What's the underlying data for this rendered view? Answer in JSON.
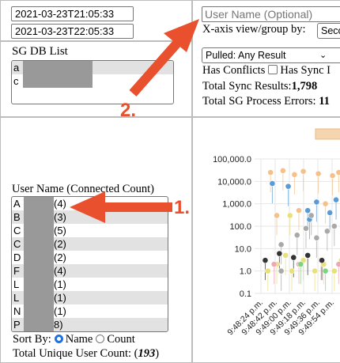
{
  "filters": {
    "start_datetime": "2021-03-23T21:05:33",
    "end_datetime": "2021-03-23T22:05:33"
  },
  "sg_db_list": {
    "title": "SG DB List",
    "items": [
      "a",
      "c"
    ]
  },
  "controls": {
    "username_placeholder": "User Name (Optional)",
    "xaxis_label": "X-axis view/group by:",
    "xaxis_value": "Seco",
    "pulled_value": "Pulled: Any Result",
    "has_conflicts_label": "Has Conflicts",
    "has_sync_label": "Has Sync I",
    "total_sync_label": "Total Sync Results:",
    "total_sync_value": "1,798",
    "total_errors_label": "Total SG Process Errors: ",
    "total_errors_value": "11"
  },
  "user_list": {
    "title": "User Name (Connected Count)",
    "items": [
      {
        "name": "A",
        "count": "(4)"
      },
      {
        "name": "B",
        "count": "(3)"
      },
      {
        "name": "C",
        "count": "(5)"
      },
      {
        "name": "C",
        "count": "(2)"
      },
      {
        "name": "D",
        "count": "(2)"
      },
      {
        "name": "F",
        "count": "(4)"
      },
      {
        "name": "L",
        "count": "(1)"
      },
      {
        "name": "L",
        "count": "(1)"
      },
      {
        "name": "N",
        "count": "(1)"
      },
      {
        "name": "P",
        "count": "8)"
      }
    ],
    "sort_by_label": "Sort By:",
    "sort_name_label": "Name",
    "sort_count_label": "Count",
    "total_unique_label": "Total Unique User Count: (",
    "total_unique_value": "193",
    "total_unique_suffix": ")"
  },
  "annotations": {
    "arrow1_label": "1.",
    "arrow2_label": "2.",
    "arrow_color": "#e8502e"
  },
  "chart_data": {
    "type": "scatter",
    "y_scale": "log",
    "ylim": [
      0.1,
      100000
    ],
    "y_ticks": [
      "100,000.0",
      "10,000.0",
      "1,000.0",
      "100.0",
      "10.0",
      "1.0",
      "0.1"
    ],
    "x_ticks": [
      "9:48:24 p.m.",
      "9:48:42 p.m.",
      "9:49:00 p.m.",
      "9:49:18 p.m.",
      "9:49:36 p.m.",
      "9:49:54 p.m."
    ],
    "grid": true,
    "series": [
      {
        "color": "#f5c18a",
        "points": [
          [
            0.18,
            25000
          ],
          [
            0.32,
            30000
          ],
          [
            0.45,
            20000
          ],
          [
            0.55,
            28000
          ],
          [
            0.72,
            22000
          ],
          [
            0.88,
            18000
          ],
          [
            0.95,
            25000
          ],
          [
            0.25,
            300
          ],
          [
            0.5,
            500
          ],
          [
            0.8,
            1000
          ]
        ]
      },
      {
        "color": "#5b9bd5",
        "points": [
          [
            0.2,
            8000
          ],
          [
            0.38,
            6000
          ],
          [
            0.6,
            500
          ],
          [
            0.7,
            1200
          ],
          [
            0.85,
            400
          ],
          [
            0.62,
            200
          ],
          [
            0.92,
            1500
          ]
        ]
      },
      {
        "color": "#e8e07a",
        "points": [
          [
            0.15,
            1
          ],
          [
            0.25,
            2
          ],
          [
            0.42,
            1
          ],
          [
            0.55,
            3
          ],
          [
            0.68,
            1
          ],
          [
            0.78,
            2
          ],
          [
            0.9,
            1
          ],
          [
            0.35,
            5
          ],
          [
            0.98,
            3
          ],
          [
            0.4,
            300
          ]
        ]
      },
      {
        "color": "#f0a7b4",
        "points": [
          [
            0.22,
            2
          ],
          [
            0.5,
            2
          ],
          [
            0.75,
            3
          ],
          [
            0.95,
            2
          ]
        ]
      },
      {
        "color": "#a9a9a9",
        "points": [
          [
            0.3,
            15
          ],
          [
            0.48,
            40
          ],
          [
            0.58,
            80
          ],
          [
            0.7,
            30
          ],
          [
            0.82,
            60
          ],
          [
            0.9,
            100
          ],
          [
            0.64,
            300
          ],
          [
            0.3,
            1
          ]
        ]
      },
      {
        "color": "#333333",
        "points": [
          [
            0.12,
            3
          ],
          [
            0.28,
            6
          ],
          [
            0.44,
            4
          ],
          [
            0.6,
            5
          ],
          [
            0.76,
            3
          ]
        ]
      },
      {
        "color": "#7dd37f",
        "points": [
          [
            0.52,
            2
          ],
          [
            0.8,
            1
          ]
        ]
      }
    ]
  }
}
